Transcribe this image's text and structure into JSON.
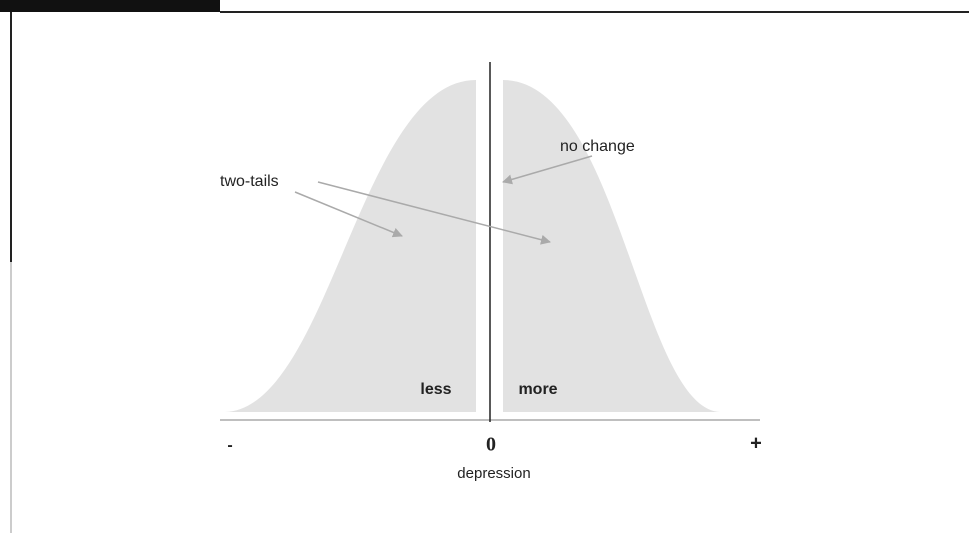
{
  "labels": {
    "two_tails": "two-tails",
    "no_change": "no change",
    "less": "less",
    "more": "more",
    "minus": "-",
    "zero": "0",
    "plus": "+",
    "axis": "depression"
  }
}
